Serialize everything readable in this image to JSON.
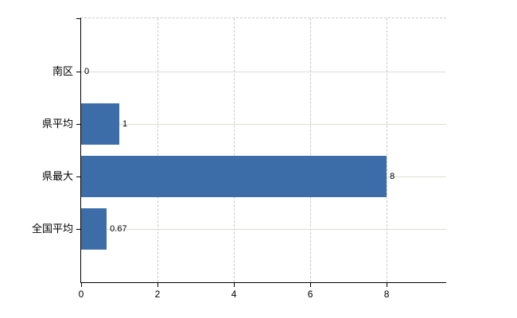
{
  "chart_data": {
    "type": "bar",
    "orientation": "horizontal",
    "title": "",
    "xlabel": "",
    "ylabel": "",
    "categories": [
      "南区",
      "県平均",
      "県最大",
      "全国平均"
    ],
    "values": [
      0,
      1,
      8,
      0.67
    ],
    "value_labels": [
      "0",
      "1",
      "8",
      "0.67"
    ],
    "x_ticks": [
      0,
      2,
      4,
      6,
      8
    ],
    "xlim": [
      0,
      9.56
    ],
    "legend": "none",
    "grid": {
      "horizontal": true,
      "vertical": true,
      "vertical_style": "dashed"
    },
    "colors": {
      "bar": "#3d6da8",
      "h_gridline": "#d9ded4",
      "v_gridline": "#c9c9c9",
      "axis": "#000000",
      "background": "#ffffff",
      "text": "#000000"
    }
  }
}
